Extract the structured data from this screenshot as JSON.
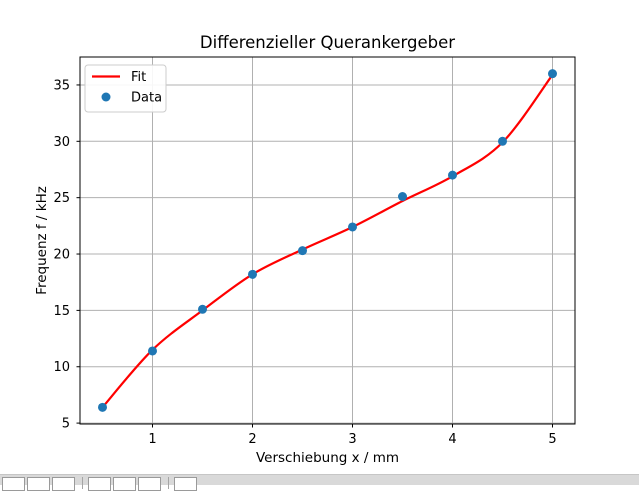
{
  "chart_data": {
    "type": "scatter",
    "title": "Differenzieller Querankergeber",
    "xlabel": "Verschiebung x / mm",
    "ylabel": "Frequenz f / kHz",
    "xlim": [
      0.275,
      5.225
    ],
    "ylim": [
      4.92,
      37.48
    ],
    "xticks": [
      1,
      2,
      3,
      4,
      5
    ],
    "yticks": [
      5,
      10,
      15,
      20,
      25,
      30,
      35
    ],
    "grid": true,
    "grid_color": "#b0b0b0",
    "legend_position": "upper left",
    "x": [
      0.5,
      1.0,
      1.5,
      2.0,
      2.5,
      3.0,
      3.5,
      4.0,
      4.5,
      5.0
    ],
    "series": [
      {
        "name": "Data",
        "type": "scatter",
        "color": "#1f77b4",
        "x": [
          0.5,
          1.0,
          1.5,
          2.0,
          2.5,
          3.0,
          3.5,
          4.0,
          4.5,
          5.0
        ],
        "y": [
          6.4,
          11.4,
          15.1,
          18.2,
          20.3,
          22.4,
          25.1,
          27.0,
          30.0,
          36.0
        ]
      },
      {
        "name": "Fit",
        "type": "line",
        "color": "#ff0000",
        "x": [
          0.5,
          1.0,
          1.5,
          2.0,
          2.5,
          3.0,
          3.5,
          4.0,
          4.5,
          5.0
        ],
        "y": [
          6.4,
          11.5,
          15.0,
          18.2,
          20.4,
          22.4,
          24.7,
          26.9,
          29.9,
          35.9
        ]
      }
    ]
  },
  "legend": {
    "items": [
      {
        "label": "Fit",
        "swatch": "line",
        "color": "#ff0000"
      },
      {
        "label": "Data",
        "swatch": "marker",
        "color": "#1f77b4"
      }
    ]
  },
  "toolbar": {
    "background": "#d9d9d9",
    "buttons": [
      {
        "name": "home",
        "type": "button"
      },
      {
        "name": "back",
        "type": "button"
      },
      {
        "name": "forward",
        "type": "button"
      },
      {
        "name": "separator",
        "type": "separator"
      },
      {
        "name": "pan",
        "type": "button"
      },
      {
        "name": "zoom",
        "type": "button"
      },
      {
        "name": "configure-subplots",
        "type": "button"
      },
      {
        "name": "separator",
        "type": "separator"
      },
      {
        "name": "save",
        "type": "button"
      }
    ]
  }
}
